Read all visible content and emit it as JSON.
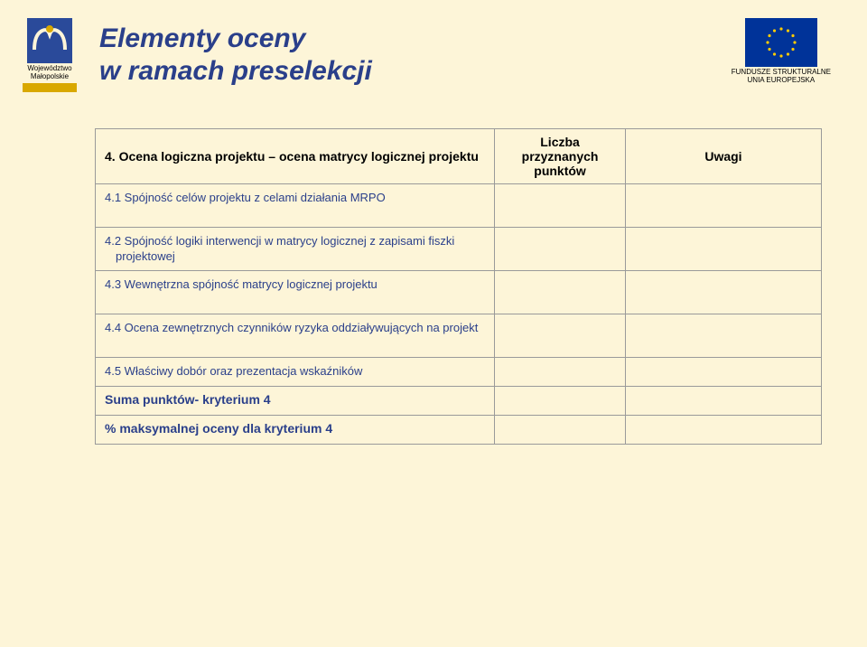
{
  "logo_left": {
    "line1": "Województwo",
    "line2": "Małopolskie",
    "icon_color": "#2a4a9a",
    "bar_color": "#d9a800"
  },
  "title": {
    "line1": "Elementy oceny",
    "line2": "w ramach preselekcji",
    "color": "#2a3f8a",
    "fontsize": 30
  },
  "eu": {
    "caption1": "FUNDUSZE STRUKTURALNE",
    "caption2": "UNIA EUROPEJSKA",
    "flag_bg": "#003399",
    "star_color": "#ffcc00"
  },
  "table": {
    "headers": {
      "c1": "4. Ocena logiczna projektu – ocena matrycy logicznej projektu",
      "c2": "Liczba przyznanych punktów",
      "c3": "Uwagi"
    },
    "rows": [
      {
        "cls": "sub tall",
        "c1": "4.1 Spójność celów projektu z celami działania MRPO",
        "c2": "",
        "c3": ""
      },
      {
        "cls": "sub tall",
        "c1": "4.2 Spójność logiki interwencji w matrycy logicznej z zapisami fiszki projektowej",
        "c2": "",
        "c3": ""
      },
      {
        "cls": "sub tall",
        "c1": "4.3 Wewnętrzna spójność matrycy logicznej projektu",
        "c2": "",
        "c3": ""
      },
      {
        "cls": "sub tall",
        "c1": "4.4 Ocena zewnętrznych czynników ryzyka oddziaływujących na projekt",
        "c2": "",
        "c3": ""
      },
      {
        "cls": "sub",
        "c1": "4.5 Właściwy dobór oraz prezentacja wskaźników",
        "c2": "",
        "c3": ""
      },
      {
        "cls": "sum",
        "c1": "Suma punktów- kryterium 4",
        "c2": "",
        "c3": ""
      },
      {
        "cls": "pct",
        "c1": "% maksymalnej oceny dla kryterium 4",
        "c2": "",
        "c3": ""
      }
    ],
    "border_color": "#9a9a9a",
    "sub_text_color": "#2a3f8a"
  },
  "colors": {
    "background": "#fdf5d8"
  }
}
